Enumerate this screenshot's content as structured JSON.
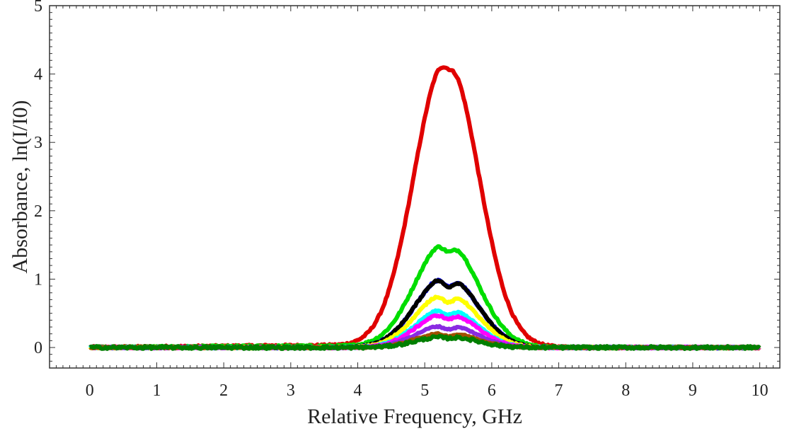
{
  "chart_data": {
    "type": "line",
    "xlabel": "Relative Frequency, GHz",
    "ylabel": "Absorbance,  ln(I/I0)",
    "xlim": [
      -0.6,
      10.3
    ],
    "ylim": [
      -0.3,
      5.0
    ],
    "xticks": [
      0,
      1,
      2,
      3,
      4,
      5,
      6,
      7,
      8,
      9,
      10
    ],
    "yticks": [
      0,
      1,
      2,
      3,
      4,
      5
    ],
    "grid": false,
    "legend": "none",
    "series": [
      {
        "color": "#e00000",
        "peak": 4.55,
        "width": 0.62,
        "dip": 0.03,
        "noise": 0.03,
        "base": 0.03
      },
      {
        "color": "#00dd00",
        "peak": 1.68,
        "width": 0.6,
        "dip": 0.09,
        "noise": 0.03,
        "base": 0.02
      },
      {
        "color": "#0000ff",
        "peak": 1.15,
        "width": 0.58,
        "dip": 0.13,
        "noise": 0.025,
        "base": 0.0
      },
      {
        "color": "#000000",
        "peak": 1.15,
        "width": 0.58,
        "dip": 0.14,
        "noise": 0.025,
        "base": 0.0
      },
      {
        "color": "#ffff00",
        "peak": 0.88,
        "width": 0.57,
        "dip": 0.16,
        "noise": 0.025,
        "base": 0.0
      },
      {
        "color": "#00ffff",
        "peak": 0.64,
        "width": 0.55,
        "dip": 0.16,
        "noise": 0.025,
        "base": 0.0
      },
      {
        "color": "#ff00ff",
        "peak": 0.56,
        "width": 0.55,
        "dip": 0.16,
        "noise": 0.025,
        "base": 0.0
      },
      {
        "color": "#8a2be2",
        "peak": 0.37,
        "width": 0.55,
        "dip": 0.18,
        "noise": 0.02,
        "base": 0.0
      },
      {
        "color": "#a05000",
        "peak": 0.24,
        "width": 0.55,
        "dip": 0.2,
        "noise": 0.02,
        "base": 0.0
      },
      {
        "color": "#007f00",
        "peak": 0.18,
        "width": 0.55,
        "dip": 0.15,
        "noise": 0.04,
        "base": 0.0
      }
    ]
  }
}
